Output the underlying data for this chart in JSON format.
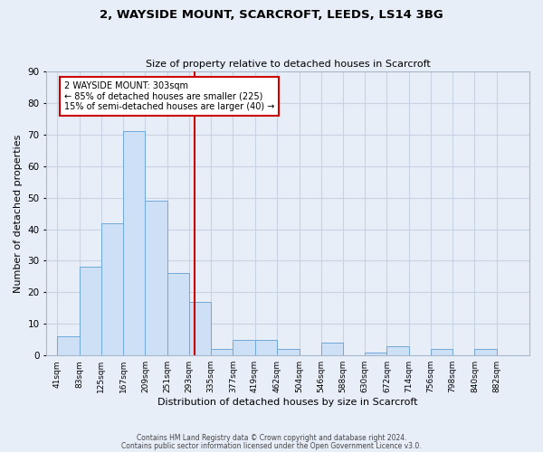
{
  "title": "2, WAYSIDE MOUNT, SCARCROFT, LEEDS, LS14 3BG",
  "subtitle": "Size of property relative to detached houses in Scarcroft",
  "xlabel": "Distribution of detached houses by size in Scarcroft",
  "ylabel": "Number of detached properties",
  "bar_color": "#cde0f5",
  "bar_edge_color": "#6fa8d8",
  "grid_color": "#c8d4e4",
  "background_color": "#e8eef8",
  "bins": [
    "41sqm",
    "83sqm",
    "125sqm",
    "167sqm",
    "209sqm",
    "251sqm",
    "293sqm",
    "335sqm",
    "377sqm",
    "419sqm",
    "462sqm",
    "504sqm",
    "546sqm",
    "588sqm",
    "630sqm",
    "672sqm",
    "714sqm",
    "756sqm",
    "798sqm",
    "840sqm",
    "882sqm"
  ],
  "values": [
    6,
    28,
    42,
    71,
    49,
    26,
    17,
    2,
    5,
    5,
    2,
    0,
    4,
    0,
    1,
    3,
    0,
    2,
    0,
    2,
    0
  ],
  "bin_edges": [
    41,
    83,
    125,
    167,
    209,
    251,
    293,
    335,
    377,
    419,
    462,
    504,
    546,
    588,
    630,
    672,
    714,
    756,
    798,
    840,
    882,
    924
  ],
  "ylim": [
    0,
    90
  ],
  "yticks": [
    0,
    10,
    20,
    30,
    40,
    50,
    60,
    70,
    80,
    90
  ],
  "vline_x": 303,
  "vline_color": "#cc0000",
  "annotation_title": "2 WAYSIDE MOUNT: 303sqm",
  "annotation_line1": "← 85% of detached houses are smaller (225)",
  "annotation_line2": "15% of semi-detached houses are larger (40) →",
  "annotation_box_color": "#ffffff",
  "annotation_box_edge": "#cc0000",
  "footer1": "Contains HM Land Registry data © Crown copyright and database right 2024.",
  "footer2": "Contains public sector information licensed under the Open Government Licence v3.0."
}
